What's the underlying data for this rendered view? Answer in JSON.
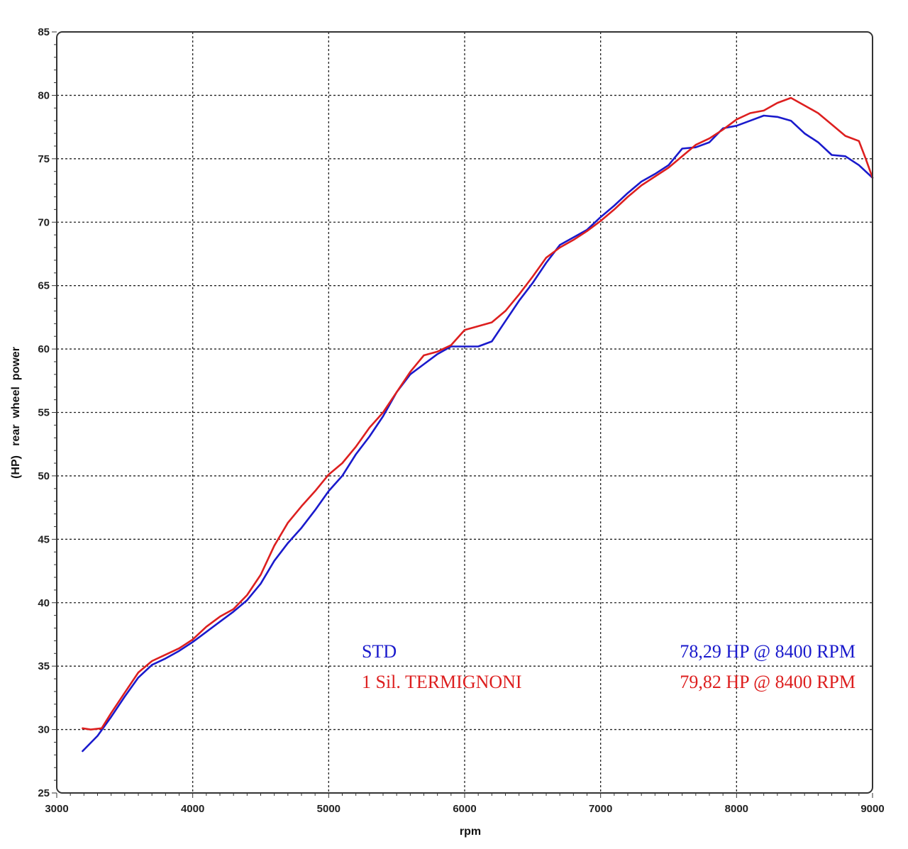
{
  "chart_data": {
    "type": "line",
    "xlabel": "rpm",
    "ylabel": "(HP)   rear  wheel  power",
    "xlim": [
      3000,
      9000
    ],
    "ylim": [
      25,
      85
    ],
    "xticks": [
      3000,
      4000,
      5000,
      6000,
      7000,
      8000,
      9000
    ],
    "yticks": [
      25,
      30,
      35,
      40,
      45,
      50,
      55,
      60,
      65,
      70,
      75,
      80,
      85
    ],
    "grid": true,
    "legend": "bottom-right",
    "series": [
      {
        "name": "STD",
        "peak_label": "78,29 HP @ 8400 RPM",
        "color": "#1a1acc",
        "x": [
          3190,
          3300,
          3400,
          3500,
          3600,
          3700,
          3800,
          3900,
          4000,
          4100,
          4200,
          4300,
          4400,
          4500,
          4600,
          4700,
          4800,
          4900,
          5000,
          5100,
          5200,
          5300,
          5400,
          5500,
          5600,
          5700,
          5800,
          5900,
          6000,
          6100,
          6200,
          6300,
          6400,
          6500,
          6600,
          6700,
          6800,
          6900,
          7000,
          7100,
          7200,
          7300,
          7400,
          7500,
          7600,
          7700,
          7800,
          7900,
          8000,
          8100,
          8200,
          8300,
          8400,
          8500,
          8600,
          8700,
          8800,
          8900,
          9000
        ],
        "values": [
          28.3,
          29.5,
          31.0,
          32.6,
          34.1,
          35.1,
          35.6,
          36.2,
          36.9,
          37.7,
          38.5,
          39.3,
          40.2,
          41.5,
          43.3,
          44.7,
          45.9,
          47.3,
          48.8,
          50.0,
          51.7,
          53.1,
          54.7,
          56.6,
          58.0,
          58.8,
          59.6,
          60.2,
          60.2,
          60.2,
          60.6,
          62.2,
          63.8,
          65.2,
          66.8,
          68.2,
          68.8,
          69.4,
          70.4,
          71.3,
          72.3,
          73.2,
          73.8,
          74.5,
          75.8,
          75.9,
          76.3,
          77.4,
          77.6,
          78.0,
          78.4,
          78.3,
          78.0,
          77.0,
          76.3,
          75.3,
          75.2,
          74.5,
          73.5
        ]
      },
      {
        "name": "1 Sil. TERMIGNONI",
        "peak_label": "79,82 HP @ 8400 RPM",
        "color": "#dd1f1f",
        "x": [
          3190,
          3250,
          3330,
          3400,
          3500,
          3600,
          3700,
          3800,
          3900,
          4000,
          4100,
          4200,
          4300,
          4400,
          4500,
          4600,
          4700,
          4800,
          4900,
          5000,
          5100,
          5200,
          5300,
          5400,
          5500,
          5600,
          5700,
          5800,
          5900,
          6000,
          6100,
          6200,
          6300,
          6400,
          6500,
          6600,
          6700,
          6800,
          6900,
          7000,
          7100,
          7200,
          7300,
          7400,
          7500,
          7600,
          7700,
          7800,
          7900,
          8000,
          8100,
          8200,
          8300,
          8400,
          8500,
          8600,
          8700,
          8800,
          8900,
          8950,
          9000
        ],
        "values": [
          30.1,
          30.0,
          30.1,
          31.3,
          32.9,
          34.5,
          35.4,
          35.9,
          36.4,
          37.1,
          38.1,
          38.9,
          39.5,
          40.6,
          42.2,
          44.5,
          46.3,
          47.6,
          48.8,
          50.1,
          51.0,
          52.3,
          53.8,
          55.0,
          56.6,
          58.2,
          59.5,
          59.8,
          60.3,
          61.5,
          61.8,
          62.1,
          63.0,
          64.3,
          65.7,
          67.2,
          68.0,
          68.6,
          69.3,
          70.1,
          71.0,
          72.0,
          72.9,
          73.6,
          74.3,
          75.2,
          76.1,
          76.6,
          77.3,
          78.1,
          78.6,
          78.8,
          79.4,
          79.8,
          79.2,
          78.6,
          77.7,
          76.8,
          76.4,
          75.0,
          73.5
        ]
      }
    ]
  }
}
